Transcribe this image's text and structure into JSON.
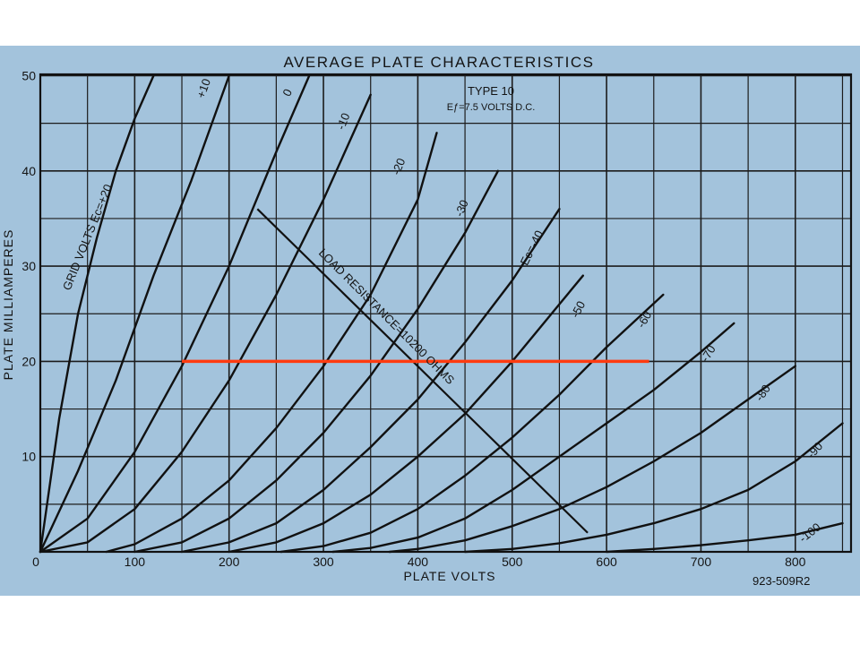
{
  "chart_data": {
    "type": "line",
    "title": "AVERAGE PLATE CHARACTERISTICS",
    "xlabel": "PLATE VOLTS",
    "ylabel": "PLATE MILLIAMPERES",
    "xlim": [
      0,
      850
    ],
    "ylim": [
      0,
      50
    ],
    "grid": true,
    "x_ticks": [
      "0",
      "100",
      "200",
      "300",
      "400",
      "500",
      "600",
      "700",
      "800"
    ],
    "y_ticks": [
      "0",
      "10",
      "20",
      "30",
      "40",
      "50"
    ],
    "tube_type": "TYPE 10",
    "filament_note": "Eƒ=7.5 VOLTS D.C.",
    "grid_volts_label": "GRID VOLTS Eᴄ=+20",
    "drawing_number": "923-509R2",
    "load_line_label": "LOAD RESISTANCE=10200 OHMS",
    "series": [
      {
        "name": "+20",
        "label": "GRID VOLTS Eᴄ=+20",
        "x": [
          0,
          20,
          40,
          60,
          80,
          100,
          120
        ],
        "y": [
          0,
          14,
          25,
          33,
          40,
          45.5,
          50
        ]
      },
      {
        "name": "+10",
        "label": "+10",
        "x": [
          0,
          40,
          80,
          120,
          160,
          200
        ],
        "y": [
          0,
          8.5,
          18,
          29,
          39,
          50
        ]
      },
      {
        "name": "0",
        "label": "0",
        "x": [
          0,
          50,
          100,
          150,
          200,
          250,
          285
        ],
        "y": [
          0,
          3.5,
          10.5,
          19.5,
          30,
          42,
          50
        ]
      },
      {
        "name": "-10",
        "label": "-10",
        "x": [
          0,
          50,
          100,
          150,
          200,
          250,
          300,
          350
        ],
        "y": [
          0,
          1,
          4.5,
          10.5,
          18,
          27,
          37,
          48
        ]
      },
      {
        "name": "-20",
        "label": "-20",
        "x": [
          70,
          100,
          150,
          200,
          250,
          300,
          350,
          400,
          420
        ],
        "y": [
          0,
          0.8,
          3.5,
          7.5,
          13,
          19.5,
          27,
          37,
          44
        ]
      },
      {
        "name": "-30",
        "label": "-30",
        "x": [
          100,
          150,
          200,
          250,
          300,
          350,
          400,
          450,
          485
        ],
        "y": [
          0,
          1,
          3.5,
          7.5,
          12.5,
          18.5,
          25.5,
          33.5,
          40
        ]
      },
      {
        "name": "-40",
        "label": "Eᴄ=-40",
        "x": [
          150,
          200,
          250,
          300,
          350,
          400,
          450,
          500,
          550
        ],
        "y": [
          0,
          1,
          3,
          6.5,
          11,
          16,
          22,
          28.5,
          36
        ]
      },
      {
        "name": "-50",
        "label": "-50",
        "x": [
          200,
          250,
          300,
          350,
          400,
          450,
          500,
          550,
          575
        ],
        "y": [
          0,
          1,
          3,
          6,
          10,
          14.5,
          20,
          26,
          29
        ]
      },
      {
        "name": "-60",
        "label": "-60",
        "x": [
          255,
          300,
          350,
          400,
          450,
          500,
          550,
          600,
          660
        ],
        "y": [
          0,
          0.6,
          2,
          4.5,
          8,
          12,
          16.5,
          21.5,
          27
        ]
      },
      {
        "name": "-70",
        "label": "-70",
        "x": [
          310,
          350,
          400,
          450,
          500,
          550,
          600,
          650,
          700,
          735
        ],
        "y": [
          0,
          0.4,
          1.5,
          3.5,
          6.5,
          10,
          13.5,
          17,
          21,
          24
        ]
      },
      {
        "name": "-80",
        "label": "-80",
        "x": [
          370,
          400,
          450,
          500,
          550,
          600,
          650,
          700,
          750,
          800
        ],
        "y": [
          0,
          0.3,
          1.2,
          2.7,
          4.5,
          6.8,
          9.5,
          12.5,
          16,
          19.5
        ]
      },
      {
        "name": "-90",
        "label": "-90",
        "x": [
          450,
          500,
          550,
          600,
          650,
          700,
          750,
          800,
          850
        ],
        "y": [
          0,
          0.3,
          0.9,
          1.8,
          3,
          4.5,
          6.5,
          9.5,
          13.5
        ]
      },
      {
        "name": "-100",
        "label": "-100",
        "x": [
          600,
          650,
          700,
          750,
          800,
          850
        ],
        "y": [
          0,
          0.3,
          0.7,
          1.2,
          1.8,
          3
        ]
      }
    ],
    "load_line": {
      "x": [
        230,
        580
      ],
      "y": [
        36,
        2
      ]
    },
    "highlight_line": {
      "x": [
        150,
        645
      ],
      "y": [
        20,
        20
      ],
      "color": "#ff3b10"
    }
  }
}
